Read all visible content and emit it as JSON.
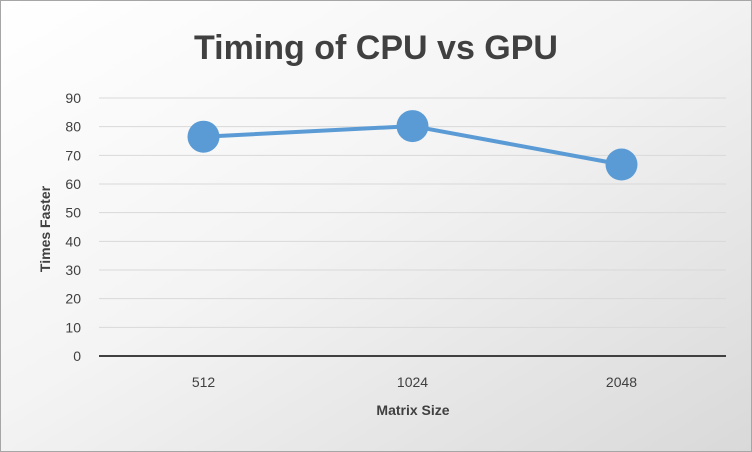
{
  "chart_data": {
    "type": "line",
    "title": "Timing of CPU vs GPU",
    "xlabel": "Matrix Size",
    "ylabel": "Times Faster",
    "categories": [
      "512",
      "1024",
      "2048"
    ],
    "series": [
      {
        "values": [
          76.5,
          80.2,
          66.8
        ]
      }
    ],
    "ylim": [
      0,
      90
    ],
    "yticks": [
      "0",
      "10",
      "20",
      "30",
      "40",
      "50",
      "60",
      "70",
      "80",
      "90"
    ],
    "grid": true,
    "legend": "none",
    "colors": {
      "series": "#5b9bd5",
      "grid": "#d9d9d9",
      "axis": "#404040",
      "text": "#404040"
    }
  }
}
